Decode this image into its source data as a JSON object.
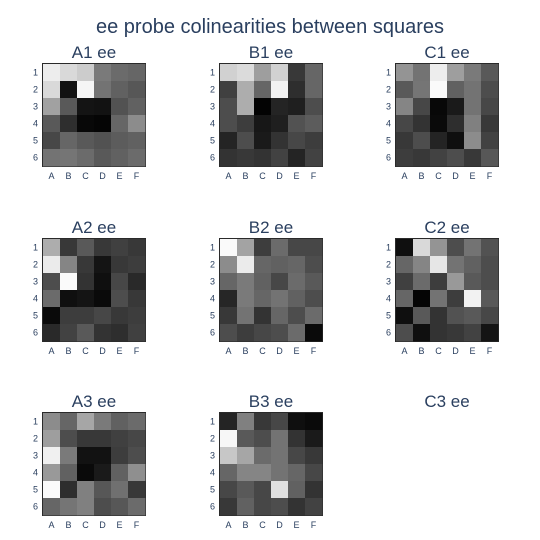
{
  "chart_data": {
    "type": "heatmap",
    "title": "ee probe colinearities between squares",
    "x_categories": [
      "A",
      "B",
      "C",
      "D",
      "E",
      "F"
    ],
    "y_categories": [
      "1",
      "2",
      "3",
      "4",
      "5",
      "6"
    ],
    "colorscale": "greys",
    "value_range": [
      0,
      1
    ],
    "panels": [
      {
        "title": "A1 ee",
        "values": [
          [
            0.93,
            0.85,
            0.8,
            0.48,
            0.42,
            0.4
          ],
          [
            0.85,
            0.07,
            0.96,
            0.45,
            0.38,
            0.34
          ],
          [
            0.63,
            0.35,
            0.08,
            0.07,
            0.32,
            0.38
          ],
          [
            0.35,
            0.18,
            0.03,
            0.02,
            0.4,
            0.55
          ],
          [
            0.28,
            0.4,
            0.35,
            0.32,
            0.36,
            0.38
          ],
          [
            0.45,
            0.46,
            0.42,
            0.35,
            0.38,
            0.42
          ]
        ]
      },
      {
        "title": "B1 ee",
        "values": [
          [
            0.82,
            0.86,
            0.62,
            0.82,
            0.22,
            0.4
          ],
          [
            0.25,
            0.68,
            0.4,
            0.95,
            0.18,
            0.4
          ],
          [
            0.3,
            0.68,
            0.01,
            0.14,
            0.12,
            0.3
          ],
          [
            0.3,
            0.24,
            0.09,
            0.12,
            0.32,
            0.36
          ],
          [
            0.14,
            0.3,
            0.1,
            0.2,
            0.28,
            0.24
          ],
          [
            0.2,
            0.22,
            0.2,
            0.26,
            0.14,
            0.26
          ]
        ]
      },
      {
        "title": "C1 ee",
        "values": [
          [
            0.58,
            0.45,
            0.93,
            0.62,
            0.48,
            0.35
          ],
          [
            0.35,
            0.46,
            0.98,
            0.38,
            0.45,
            0.3
          ],
          [
            0.52,
            0.28,
            0.03,
            0.1,
            0.45,
            0.28
          ],
          [
            0.28,
            0.2,
            0.04,
            0.18,
            0.5,
            0.22
          ],
          [
            0.22,
            0.3,
            0.14,
            0.06,
            0.55,
            0.26
          ],
          [
            0.24,
            0.22,
            0.26,
            0.3,
            0.22,
            0.34
          ]
        ]
      },
      {
        "title": "A2 ee",
        "values": [
          [
            0.68,
            0.22,
            0.35,
            0.22,
            0.25,
            0.22
          ],
          [
            0.92,
            0.52,
            0.22,
            0.08,
            0.22,
            0.24
          ],
          [
            0.3,
            0.98,
            0.2,
            0.06,
            0.28,
            0.16
          ],
          [
            0.42,
            0.06,
            0.08,
            0.04,
            0.3,
            0.22
          ],
          [
            0.04,
            0.24,
            0.24,
            0.28,
            0.22,
            0.24
          ],
          [
            0.16,
            0.26,
            0.35,
            0.2,
            0.18,
            0.25
          ]
        ]
      },
      {
        "title": "B2 ee",
        "values": [
          [
            0.98,
            0.64,
            0.24,
            0.42,
            0.28,
            0.28
          ],
          [
            0.55,
            0.92,
            0.4,
            0.38,
            0.4,
            0.3
          ],
          [
            0.4,
            0.48,
            0.38,
            0.28,
            0.42,
            0.35
          ],
          [
            0.15,
            0.48,
            0.4,
            0.45,
            0.38,
            0.3
          ],
          [
            0.22,
            0.45,
            0.2,
            0.4,
            0.3,
            0.42
          ],
          [
            0.3,
            0.24,
            0.28,
            0.3,
            0.42,
            0.04
          ]
        ]
      },
      {
        "title": "C2 ee",
        "values": [
          [
            0.06,
            0.85,
            0.58,
            0.3,
            0.45,
            0.32
          ],
          [
            0.4,
            0.52,
            0.9,
            0.45,
            0.38,
            0.3
          ],
          [
            0.25,
            0.42,
            0.24,
            0.6,
            0.35,
            0.3
          ],
          [
            0.4,
            0.02,
            0.45,
            0.24,
            0.95,
            0.35
          ],
          [
            0.06,
            0.35,
            0.2,
            0.32,
            0.35,
            0.28
          ],
          [
            0.3,
            0.06,
            0.2,
            0.22,
            0.26,
            0.08
          ]
        ]
      },
      {
        "title": "A3 ee",
        "values": [
          [
            0.55,
            0.4,
            0.65,
            0.48,
            0.38,
            0.42
          ],
          [
            0.62,
            0.3,
            0.22,
            0.22,
            0.25,
            0.28
          ],
          [
            0.94,
            0.48,
            0.07,
            0.07,
            0.24,
            0.3
          ],
          [
            0.6,
            0.38,
            0.04,
            0.1,
            0.38,
            0.56
          ],
          [
            0.98,
            0.18,
            0.5,
            0.34,
            0.44,
            0.22
          ],
          [
            0.4,
            0.46,
            0.5,
            0.3,
            0.34,
            0.42
          ]
        ]
      },
      {
        "title": "B3 ee",
        "values": [
          [
            0.14,
            0.5,
            0.22,
            0.28,
            0.06,
            0.04
          ],
          [
            0.97,
            0.35,
            0.3,
            0.45,
            0.2,
            0.1
          ],
          [
            0.78,
            0.65,
            0.42,
            0.45,
            0.28,
            0.22
          ],
          [
            0.4,
            0.52,
            0.52,
            0.45,
            0.4,
            0.28
          ],
          [
            0.28,
            0.35,
            0.28,
            0.88,
            0.38,
            0.2
          ],
          [
            0.22,
            0.38,
            0.28,
            0.3,
            0.2,
            0.26
          ]
        ]
      },
      {
        "title": "C3 ee",
        "values": []
      }
    ]
  }
}
